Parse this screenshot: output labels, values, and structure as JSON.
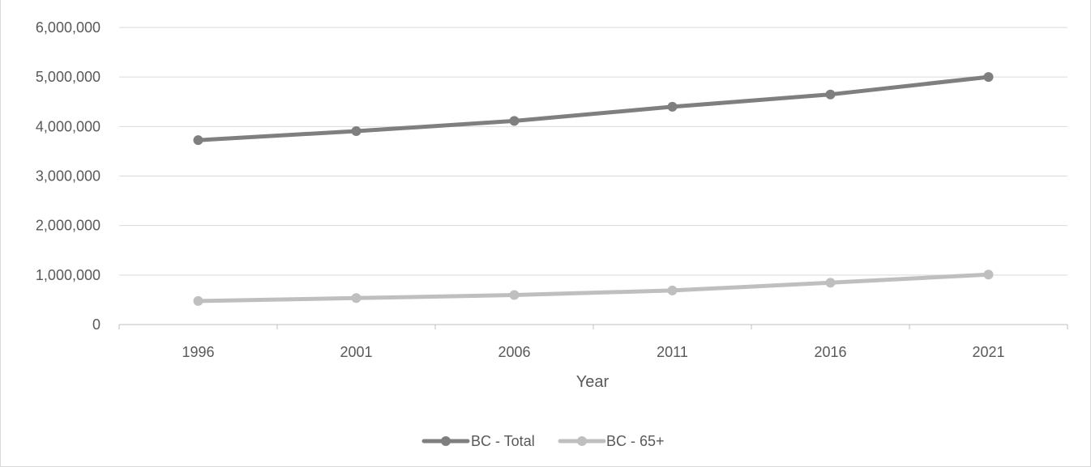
{
  "chart_data": {
    "type": "line",
    "categories": [
      "1996",
      "2001",
      "2006",
      "2011",
      "2016",
      "2021"
    ],
    "series": [
      {
        "name": "BC - Total",
        "color": "#7f7f7f",
        "values": [
          3724500,
          3907700,
          4113500,
          4400000,
          4648000,
          5000880
        ]
      },
      {
        "name": "BC - 65+",
        "color": "#bfbfbf",
        "values": [
          476000,
          535000,
          597000,
          688000,
          845000,
          1010000
        ]
      }
    ],
    "xlabel": "Year",
    "ylabel": "",
    "ylim": [
      0,
      6000000
    ],
    "yticks": [
      0,
      1000000,
      2000000,
      3000000,
      4000000,
      5000000,
      6000000
    ],
    "grid": "horizontal",
    "legend": "bottom-center"
  }
}
